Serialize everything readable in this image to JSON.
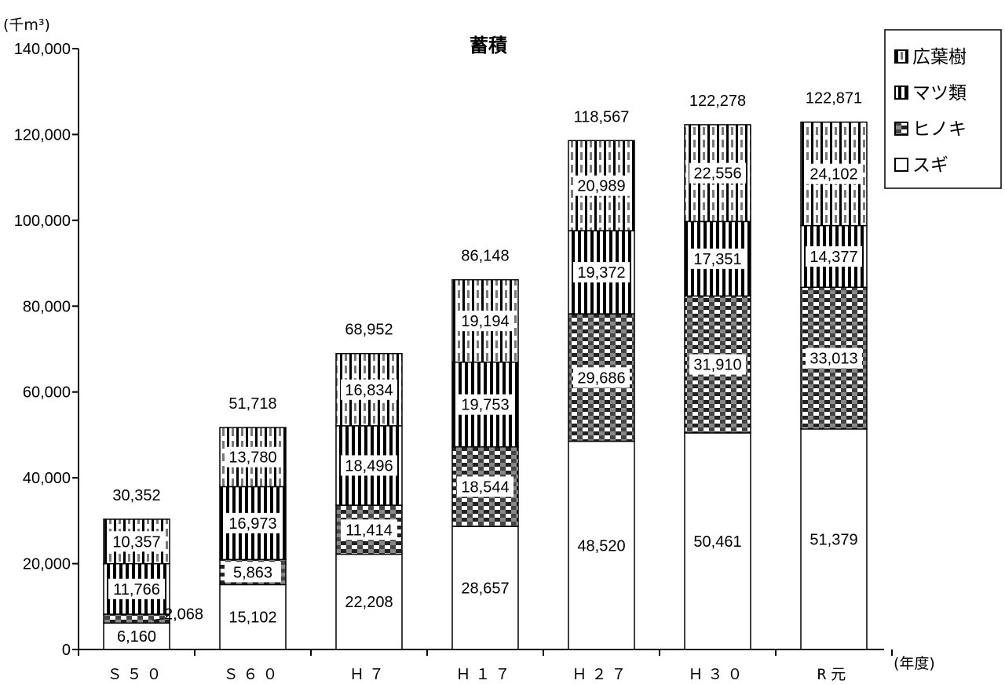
{
  "chart_data": {
    "type": "bar",
    "stacked": true,
    "title": "蓄積",
    "y_unit": "(千m³)",
    "x_unit": "(年度)",
    "categories": [
      "Ｓ５０",
      "Ｓ６０",
      "Ｈ７",
      "Ｈ１７",
      "Ｈ２７",
      "Ｈ３０",
      "R元"
    ],
    "ylim": [
      0,
      140000
    ],
    "yticks": [
      0,
      20000,
      40000,
      60000,
      80000,
      100000,
      120000,
      140000
    ],
    "ytick_labels": [
      "0",
      "20,000",
      "40,000",
      "60,000",
      "80,000",
      "100,000",
      "120,000",
      "140,000"
    ],
    "series": [
      {
        "name": "スギ",
        "values": [
          6160,
          15102,
          22208,
          28657,
          48520,
          50461,
          51379
        ],
        "labels": [
          "6,160",
          "15,102",
          "22,208",
          "28,657",
          "48,520",
          "50,461",
          "51,379"
        ],
        "pattern": "plain"
      },
      {
        "name": "ヒノキ",
        "values": [
          2068,
          5863,
          11414,
          18544,
          29686,
          31910,
          33013
        ],
        "labels": [
          "2,068",
          "5,863",
          "11,414",
          "18,544",
          "29,686",
          "31,910",
          "33,013"
        ],
        "pattern": "checker"
      },
      {
        "name": "マツ類",
        "values": [
          11766,
          16973,
          18496,
          19753,
          19372,
          17351,
          14377
        ],
        "labels": [
          "11,766",
          "16,973",
          "18,496",
          "19,753",
          "19,372",
          "17,351",
          "14,377"
        ],
        "pattern": "vstripe"
      },
      {
        "name": "広葉樹",
        "values": [
          10357,
          13780,
          16834,
          19194,
          20989,
          22556,
          24102
        ],
        "labels": [
          "10,357",
          "13,780",
          "16,834",
          "19,194",
          "20,989",
          "22,556",
          "24,102"
        ],
        "pattern": "slant"
      }
    ],
    "totals": [
      "30,352",
      "51,718",
      "68,952",
      "86,148",
      "118,567",
      "122,278",
      "122,871"
    ],
    "legend": {
      "placement": "top-right",
      "order": [
        "広葉樹",
        "マツ類",
        "ヒノキ",
        "スギ"
      ],
      "markers": [
        "■",
        "■",
        "■",
        "□"
      ]
    },
    "grid": false
  }
}
